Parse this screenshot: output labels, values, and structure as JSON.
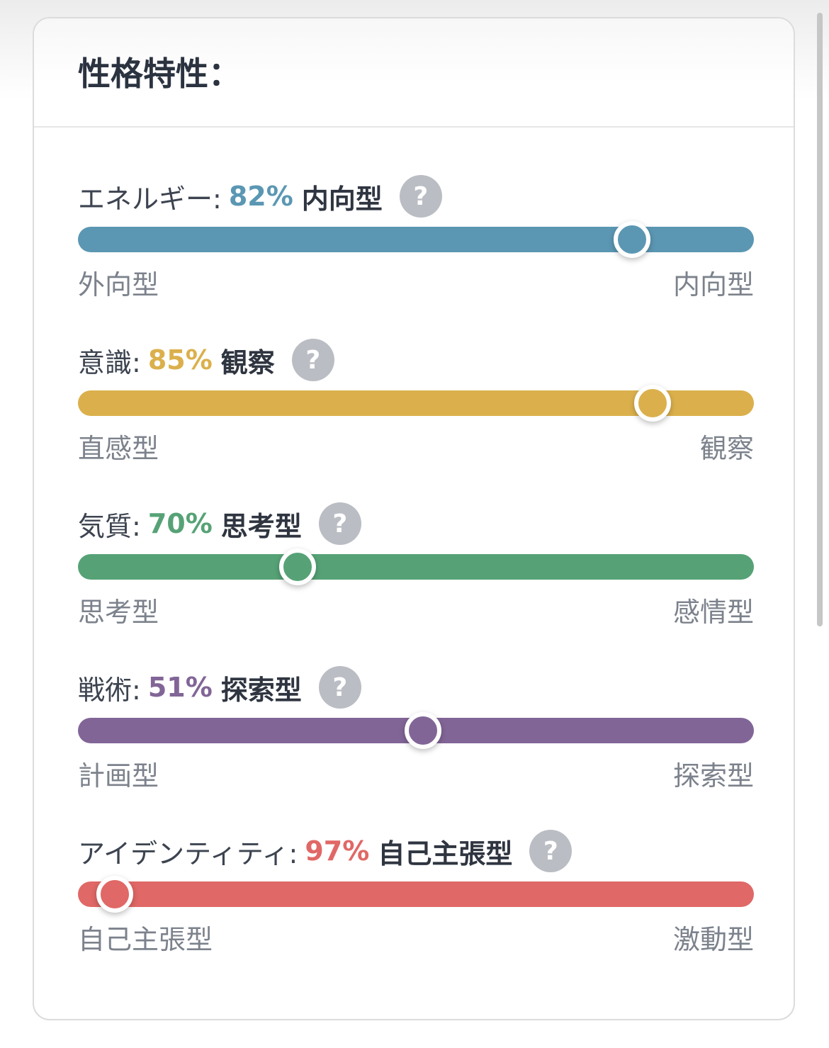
{
  "header": {
    "title": "性格特性："
  },
  "traits": [
    {
      "label": "エネルギー:",
      "percent": "82%",
      "result": "内向型",
      "color": "#5b97b3",
      "thumb_position": 0.82,
      "left_label": "外向型",
      "right_label": "内向型"
    },
    {
      "label": "意識:",
      "percent": "85%",
      "result": "観察",
      "color": "#dbb04c",
      "thumb_position": 0.85,
      "left_label": "直感型",
      "right_label": "観察"
    },
    {
      "label": "気質:",
      "percent": "70%",
      "result": "思考型",
      "color": "#56a276",
      "thumb_position": 0.325,
      "left_label": "思考型",
      "right_label": "感情型"
    },
    {
      "label": "戦術:",
      "percent": "51%",
      "result": "探索型",
      "color": "#826597",
      "thumb_position": 0.51,
      "left_label": "計画型",
      "right_label": "探索型"
    },
    {
      "label": "アイデンティティ:",
      "percent": "97%",
      "result": "自己主張型",
      "color": "#e06866",
      "thumb_position": 0.055,
      "left_label": "自己主張型",
      "right_label": "激動型"
    }
  ],
  "help_glyph": "?",
  "icons": {
    "help": "help-circle-icon"
  }
}
